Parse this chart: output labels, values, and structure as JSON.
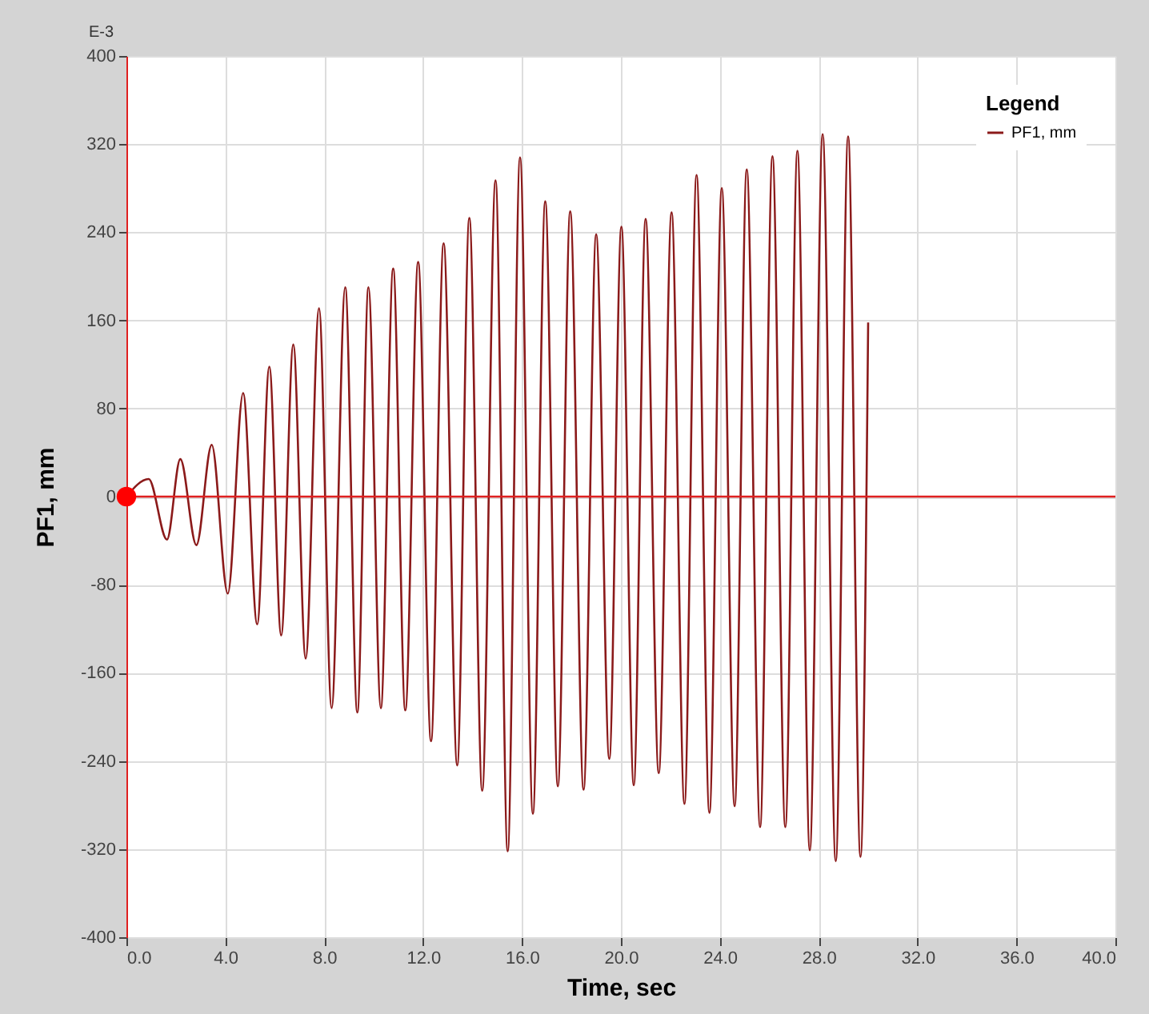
{
  "chart_data": {
    "type": "line",
    "xlabel": "Time,  sec",
    "ylabel": "PF1,  mm",
    "legend_title": "Legend",
    "annotations": [
      "E-3"
    ],
    "xlim": [
      0,
      40
    ],
    "xticks": [
      {
        "value": 0,
        "label": "0.0"
      },
      {
        "value": 4,
        "label": "4.0"
      },
      {
        "value": 8,
        "label": "8.0"
      },
      {
        "value": 12,
        "label": "12.0"
      },
      {
        "value": 16,
        "label": "16.0"
      },
      {
        "value": 20,
        "label": "20.0"
      },
      {
        "value": 24,
        "label": "24.0"
      },
      {
        "value": 28,
        "label": "28.0"
      },
      {
        "value": 32,
        "label": "32.0"
      },
      {
        "value": 36,
        "label": "36.0"
      },
      {
        "value": 40,
        "label": "40.0"
      }
    ],
    "ylim": [
      -400,
      400
    ],
    "yticks": [
      -400,
      -320,
      -240,
      -160,
      -80,
      0,
      80,
      160,
      240,
      320,
      400
    ],
    "grid": true,
    "legend": "top right",
    "marker": "none",
    "line_style": "solid",
    "ref_lines": [
      {
        "axis": "y",
        "value": 0,
        "color": "#e02020"
      }
    ],
    "series": [
      {
        "name": "PF1, mm",
        "color": "#8b1a1a",
        "x": [
          0,
          0.9,
          1.64,
          2.18,
          2.83,
          3.45,
          4.1,
          4.72,
          5.29,
          5.78,
          6.26,
          6.75,
          7.25,
          7.79,
          8.3,
          8.85,
          9.34,
          9.79,
          10.29,
          10.79,
          11.28,
          11.8,
          12.32,
          12.83,
          13.38,
          13.87,
          14.39,
          14.93,
          15.42,
          15.92,
          16.44,
          16.94,
          17.45,
          17.95,
          18.49,
          19.0,
          19.53,
          20.02,
          20.52,
          21.0,
          21.53,
          22.05,
          22.57,
          23.06,
          23.58,
          24.08,
          24.6,
          25.09,
          25.63,
          26.13,
          26.65,
          27.14,
          27.64,
          28.16,
          28.69,
          29.19,
          29.69,
          30.0
        ],
        "values": [
          0,
          16,
          -39,
          34,
          -44,
          47,
          -88,
          94,
          -116,
          118,
          -126,
          138,
          -147,
          171,
          -192,
          190,
          -196,
          190,
          -192,
          207,
          -194,
          213,
          -222,
          230,
          -244,
          253,
          -267,
          287,
          -322,
          308,
          -288,
          268,
          -263,
          259,
          -266,
          238,
          -238,
          245,
          -262,
          252,
          -251,
          258,
          -279,
          292,
          -287,
          280,
          -281,
          297,
          -300,
          309,
          -300,
          314,
          -321,
          329,
          -331,
          327,
          -327,
          158
        ]
      },
      {
        "color": "#ff0000",
        "type": "scatter",
        "marker": "circle",
        "x": [
          0
        ],
        "values": [
          0
        ]
      }
    ]
  }
}
